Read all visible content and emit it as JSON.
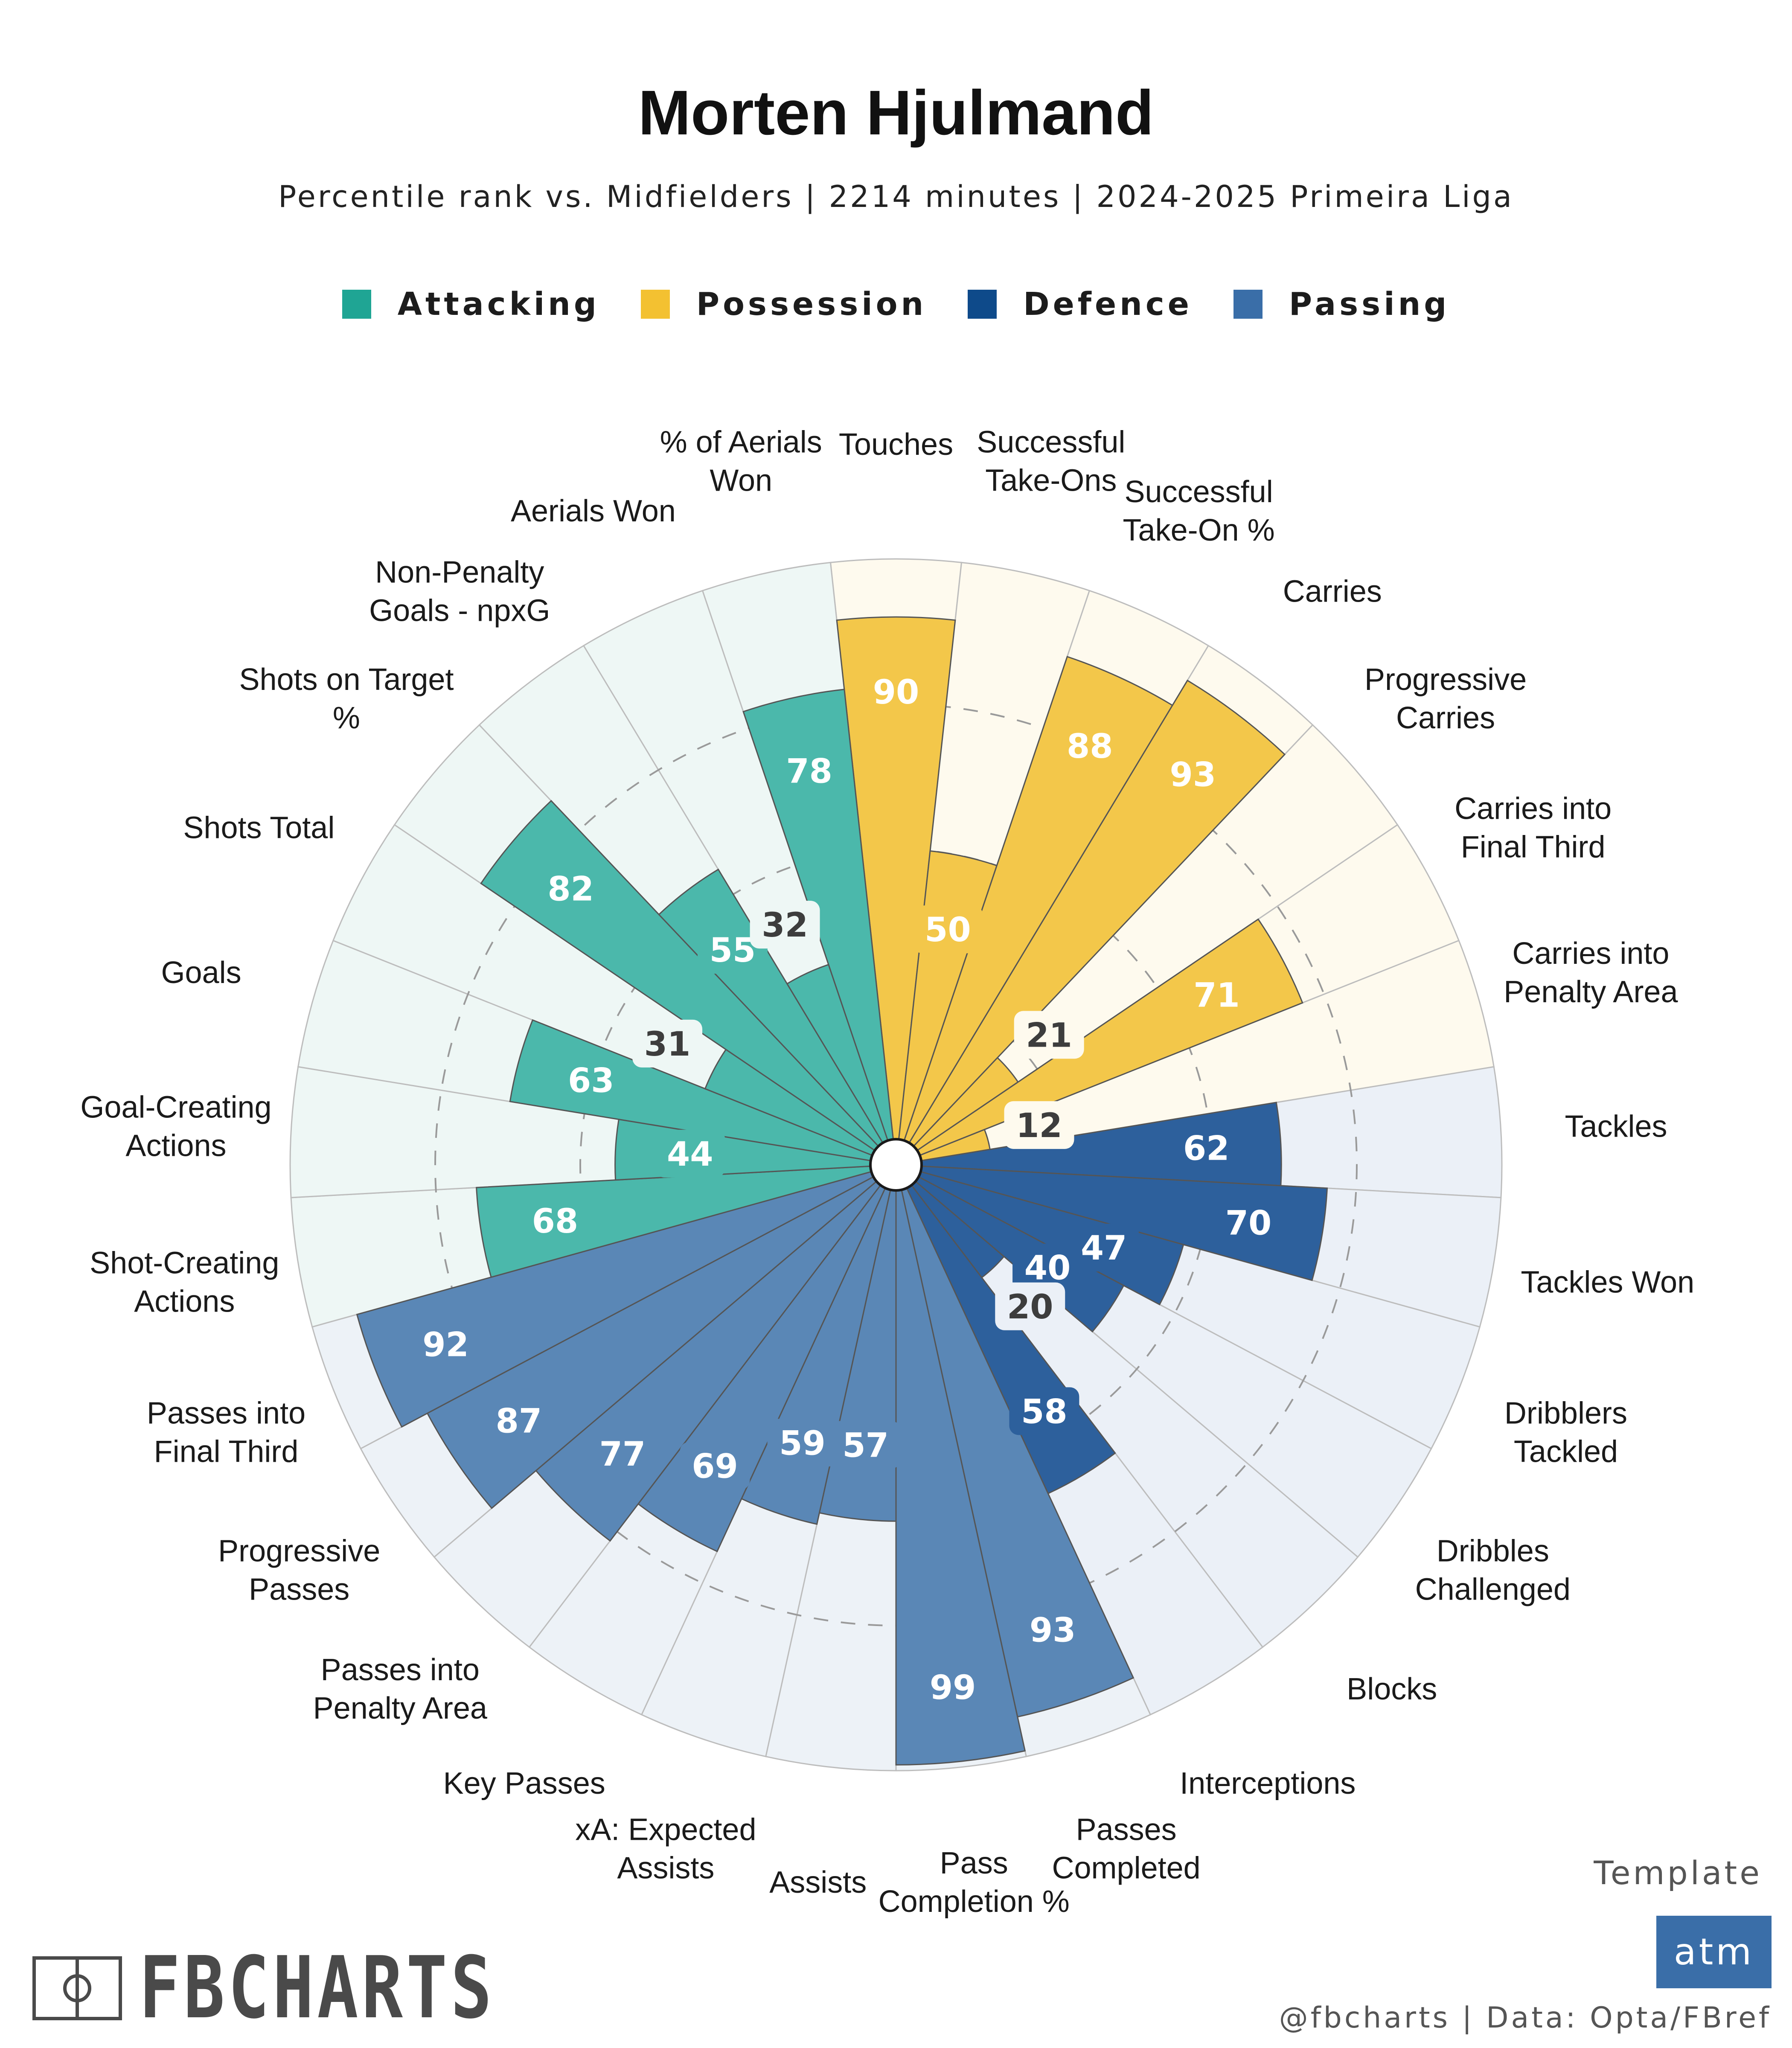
{
  "title": "Morten Hjulmand",
  "subtitle": "Percentile rank vs. Midfielders | 2214 minutes | 2024-2025 Primeira Liga",
  "legend": [
    {
      "label": "Attacking",
      "color": "#1fa594"
    },
    {
      "label": "Possession",
      "color": "#f3c131"
    },
    {
      "label": "Defence",
      "color": "#0e4a8a"
    },
    {
      "label": "Passing",
      "color": "#3a6ea8"
    }
  ],
  "chart_data": {
    "type": "polar-bar",
    "scale": [
      0,
      100
    ],
    "gridlines": [
      25,
      50,
      75
    ],
    "categories": [
      {
        "label": "Touches",
        "group": "Possession",
        "value": 90
      },
      {
        "label": "Successful\nTake-Ons",
        "group": "Possession",
        "value": 50
      },
      {
        "label": "Successful\nTake-On %",
        "group": "Possession",
        "value": 88
      },
      {
        "label": "Carries",
        "group": "Possession",
        "value": 93
      },
      {
        "label": "Progressive\nCarries",
        "group": "Possession",
        "value": 21
      },
      {
        "label": "Carries into\nFinal Third",
        "group": "Possession",
        "value": 71
      },
      {
        "label": "Carries into\nPenalty Area",
        "group": "Possession",
        "value": 12
      },
      {
        "label": "Tackles",
        "group": "Defence",
        "value": 62
      },
      {
        "label": "Tackles Won",
        "group": "Defence",
        "value": 70
      },
      {
        "label": "Dribblers\nTackled",
        "group": "Defence",
        "value": 47
      },
      {
        "label": "Dribbles\nChallenged",
        "group": "Defence",
        "value": 40
      },
      {
        "label": "Blocks",
        "group": "Defence",
        "value": 20
      },
      {
        "label": "Interceptions",
        "group": "Defence",
        "value": 58
      },
      {
        "label": "Passes\nCompleted",
        "group": "Passing",
        "value": 93
      },
      {
        "label": "Pass\nCompletion %",
        "group": "Passing",
        "value": 99
      },
      {
        "label": "Assists",
        "group": "Passing",
        "value": 57
      },
      {
        "label": "xA: Expected\nAssists",
        "group": "Passing",
        "value": 59
      },
      {
        "label": "Key Passes",
        "group": "Passing",
        "value": 69
      },
      {
        "label": "Passes into\nPenalty Area",
        "group": "Passing",
        "value": 77
      },
      {
        "label": "Progressive\nPasses",
        "group": "Passing",
        "value": 87
      },
      {
        "label": "Passes into\nFinal Third",
        "group": "Passing",
        "value": 92
      },
      {
        "label": "Shot-Creating\nActions",
        "group": "Attacking",
        "value": 68
      },
      {
        "label": "Goal-Creating\nActions",
        "group": "Attacking",
        "value": 44
      },
      {
        "label": "Goals",
        "group": "Attacking",
        "value": 63
      },
      {
        "label": "Shots Total",
        "group": "Attacking",
        "value": 31
      },
      {
        "label": "Shots on Target\n%",
        "group": "Attacking",
        "value": 82
      },
      {
        "label": "Non-Penalty\nGoals - npxG",
        "group": "Attacking",
        "value": 55
      },
      {
        "label": "Aerials Won",
        "group": "Attacking",
        "value": 32
      },
      {
        "label": "% of Aerials\nWon",
        "group": "Attacking",
        "value": 78
      }
    ]
  },
  "branding": {
    "logo_text": "FBCHARTS",
    "template_label": "Template",
    "template_badge": "atm",
    "credit": "@fbcharts | Data: Opta/FBref"
  }
}
